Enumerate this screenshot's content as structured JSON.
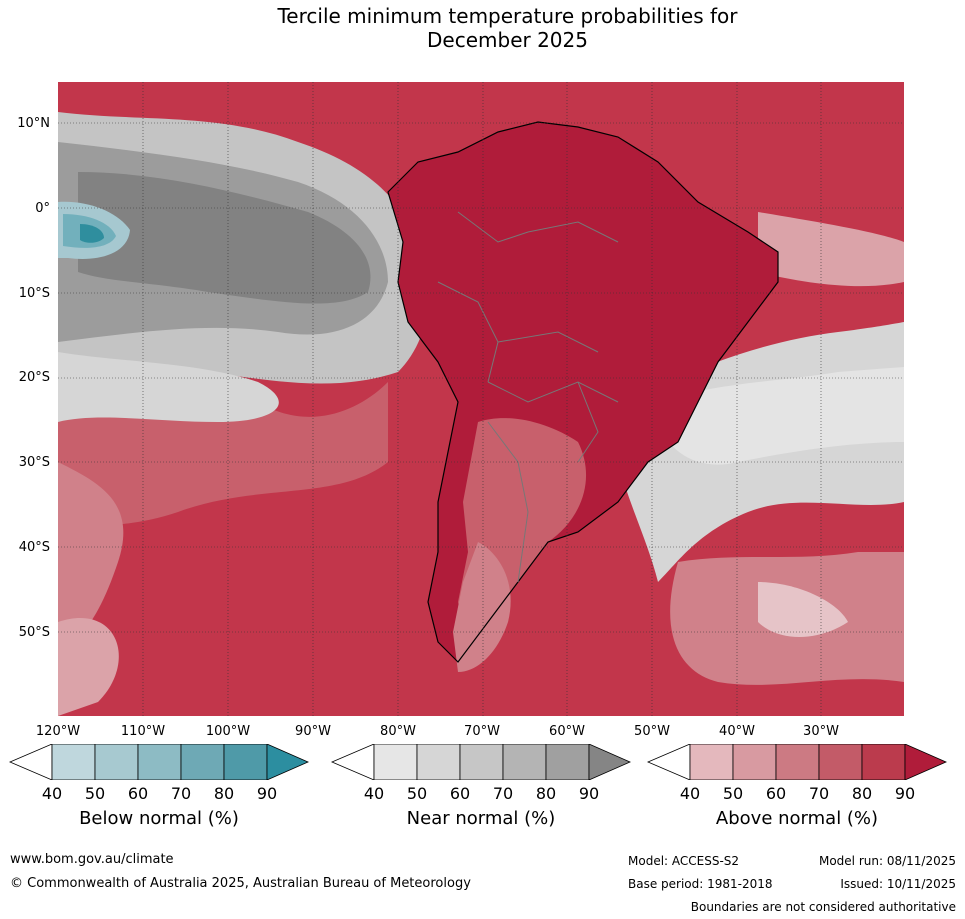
{
  "title_line1": "Tercile minimum temperature probabilities for",
  "title_line2": "December 2025",
  "map": {
    "lat_labels": [
      "10°N",
      "0°",
      "10°S",
      "20°S",
      "30°S",
      "40°S",
      "50°S"
    ],
    "lon_labels": [
      "120°W",
      "110°W",
      "100°W",
      "90°W",
      "80°W",
      "70°W",
      "60°W",
      "50°W",
      "40°W",
      "30°W"
    ],
    "colors": {
      "above_90": "#b01c3a",
      "above_80": "#c2364b",
      "above_70": "#c8606c",
      "above_60": "#d0818a",
      "above_50": "#dba3a9",
      "above_40": "#e6c4c8",
      "near_40": "#e4e4e4",
      "near_50": "#d6d6d6",
      "near_60": "#c4c4c4",
      "near_70": "#b0b0b0",
      "near_80": "#9c9c9c",
      "near_90": "#828282",
      "below_50": "#a6c8d0",
      "below_70": "#72b0bc",
      "below_90": "#2f8e9e"
    }
  },
  "legend": {
    "below": {
      "label": "Below normal (%)",
      "ticks": [
        "40",
        "50",
        "60",
        "70",
        "80",
        "90"
      ],
      "colors": [
        "#bfd7dd",
        "#a7c9d0",
        "#8dbbc4",
        "#6ea9b5",
        "#4f9aa8",
        "#2c8ea0"
      ]
    },
    "near": {
      "label": "Near normal (%)",
      "ticks": [
        "40",
        "50",
        "60",
        "70",
        "80",
        "90"
      ],
      "colors": [
        "#e6e6e6",
        "#d6d6d6",
        "#c6c6c6",
        "#b4b4b4",
        "#a0a0a0",
        "#858585"
      ]
    },
    "above": {
      "label": "Above normal (%)",
      "ticks": [
        "40",
        "50",
        "60",
        "70",
        "80",
        "90"
      ],
      "colors": [
        "#e4b8bd",
        "#d89aa1",
        "#cc7a83",
        "#c35b68",
        "#bb3b4d",
        "#b01c3a"
      ]
    }
  },
  "footer": {
    "url": "www.bom.gov.au/climate",
    "copyright": "© Commonwealth of Australia 2025, Australian Bureau of Meteorology",
    "model": "Model: ACCESS-S2",
    "model_run": "Model run: 08/11/2025",
    "base_period": "Base period: 1981-2018",
    "issued": "Issued: 10/11/2025",
    "disclaimer": "Boundaries are not considered authoritative"
  }
}
